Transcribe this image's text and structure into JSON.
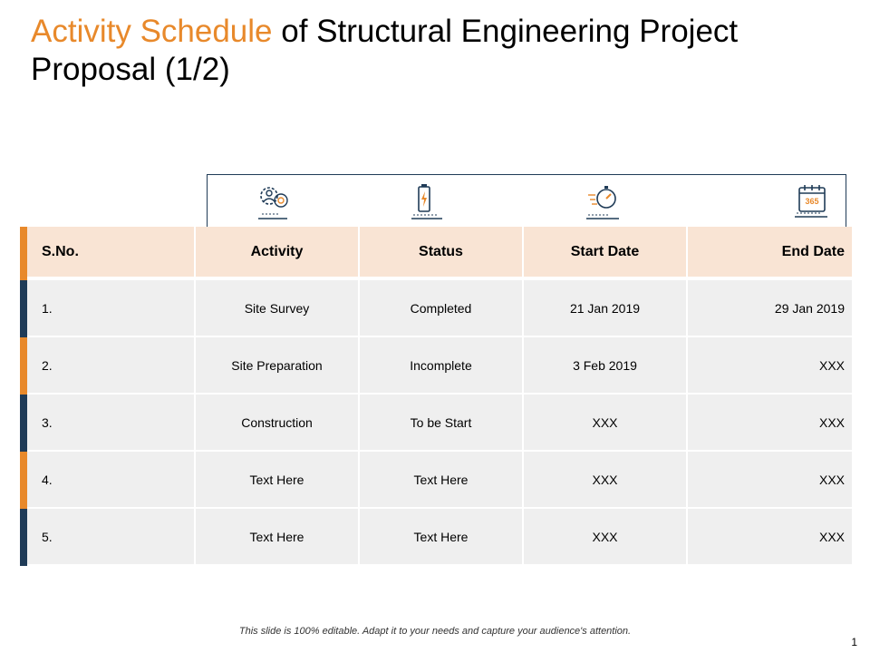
{
  "title": {
    "highlight": "Activity Schedule",
    "rest": " of Structural Engineering Project Proposal (1/2)"
  },
  "icons": [
    "settings-user-icon",
    "battery-icon",
    "stopwatch-icon",
    "calendar-365-icon"
  ],
  "calendar_icon_text": "365",
  "colors": {
    "accent": "#E8892B",
    "navy": "#1f3b57",
    "header_bg": "#F9E4D4",
    "row_bg": "#EFEFEF"
  },
  "table": {
    "headers": [
      "S.No.",
      "Activity",
      "Status",
      "Start Date",
      "End Date"
    ],
    "rows": [
      [
        "1.",
        "Site Survey",
        "Completed",
        "21 Jan 2019",
        "29 Jan 2019"
      ],
      [
        "2.",
        "Site Preparation",
        "Incomplete",
        "3 Feb 2019",
        "XXX"
      ],
      [
        "3.",
        "Construction",
        "To be Start",
        "XXX",
        "XXX"
      ],
      [
        "4.",
        "Text Here",
        "Text Here",
        "XXX",
        "XXX"
      ],
      [
        "5.",
        "Text Here",
        "Text Here",
        "XXX",
        "XXX"
      ]
    ]
  },
  "footer": "This slide is 100% editable. Adapt it to your needs and capture your audience's attention.",
  "page_number": "1"
}
